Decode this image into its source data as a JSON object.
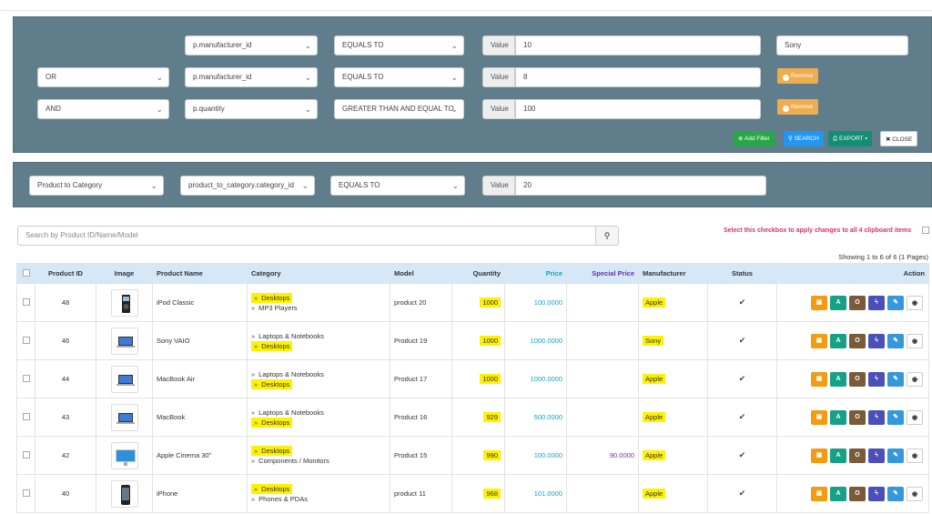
{
  "filters": [
    {
      "logic": "",
      "field": "p.manufacturer_id",
      "operator": "EQUALS TO",
      "value_label": "Value",
      "value": "10",
      "extra": "Sony",
      "remove_label": ""
    },
    {
      "logic": "OR",
      "field": "p.manufacturer_id",
      "operator": "EQUALS TO",
      "value_label": "Value",
      "value": "8",
      "extra": "",
      "remove_label": "Remove"
    },
    {
      "logic": "AND",
      "field": "p.quantity",
      "operator": "GREATER THAN AND EQUAL TO",
      "value_label": "Value",
      "value": "100",
      "extra": "",
      "remove_label": "Remove"
    }
  ],
  "toolbar": {
    "add_filter": "Add Filter",
    "search": "SEARCH",
    "export": "EXPORT",
    "close": "CLOSE"
  },
  "filter2": {
    "table": "Product to Category",
    "field": "product_to_category.category_id",
    "operator": "EQUALS TO",
    "value_label": "Value",
    "value": "20"
  },
  "search": {
    "placeholder": "Search by Product ID/Name/Model"
  },
  "clipboard_note": "Select this checkbox to apply changes to all 4 clipboard items",
  "showing": "Showing 1 to 6 of 6 (1 Pages)",
  "columns": [
    "Product ID",
    "Image",
    "Product Name",
    "Category",
    "Model",
    "Quantity",
    "Price",
    "Special Price",
    "Manufacturer",
    "Status",
    "Action"
  ],
  "rows": [
    {
      "id": "48",
      "name": "iPod Classic",
      "cat1": "Desktops",
      "cat2": "MP3 Players",
      "hl": 1,
      "model": "product 20",
      "qty": "1000",
      "price": "100.0000",
      "special": "",
      "mfr": "Apple"
    },
    {
      "id": "46",
      "name": "Sony VAIO",
      "cat1": "Laptops & Notebooks",
      "cat2": "Desktops",
      "hl": 2,
      "model": "Product 19",
      "qty": "1000",
      "price": "1000.0000",
      "special": "",
      "mfr": "Sony"
    },
    {
      "id": "44",
      "name": "MacBook Air",
      "cat1": "Laptops & Notebooks",
      "cat2": "Desktops",
      "hl": 2,
      "model": "Product 17",
      "qty": "1000",
      "price": "1000.0000",
      "special": "",
      "mfr": "Apple"
    },
    {
      "id": "43",
      "name": "MacBook",
      "cat1": "Laptops & Notebooks",
      "cat2": "Desktops",
      "hl": 2,
      "model": "Product 16",
      "qty": "929",
      "price": "500.0000",
      "special": "",
      "mfr": "Apple"
    },
    {
      "id": "42",
      "name": "Apple Cinema 30\"",
      "cat1": "Desktops",
      "cat2": "Components / Monitors",
      "hl": 1,
      "model": "Product 15",
      "qty": "990",
      "price": "100.0000",
      "special": "90.0000",
      "mfr": "Apple"
    },
    {
      "id": "40",
      "name": "iPhone",
      "cat1": "Desktops",
      "cat2": "Phones & PDAs",
      "hl": 1,
      "model": "product 11",
      "qty": "968",
      "price": "101.0000",
      "special": "",
      "mfr": "Apple"
    }
  ],
  "action_buttons": [
    {
      "label": "",
      "icon": "image-icon",
      "color": "#f39c12"
    },
    {
      "label": "A",
      "icon": "attribute-icon",
      "color": "#16a085"
    },
    {
      "label": "O",
      "icon": "option-icon",
      "color": "#7b5a3a"
    },
    {
      "label": "",
      "icon": "bolt-icon",
      "color": "#4b4fb8"
    },
    {
      "label": "",
      "icon": "pencil-icon",
      "color": "#3498db"
    },
    {
      "label": "",
      "icon": "eye-icon",
      "color": "#ffffff"
    }
  ],
  "colors": {
    "panel": "#607d8b",
    "header": "#d4e8f8",
    "highlight": "#fff200",
    "add_filter": "#28a745",
    "search": "#2196f3",
    "export": "#138d75",
    "remove": "#f0ad4e"
  }
}
